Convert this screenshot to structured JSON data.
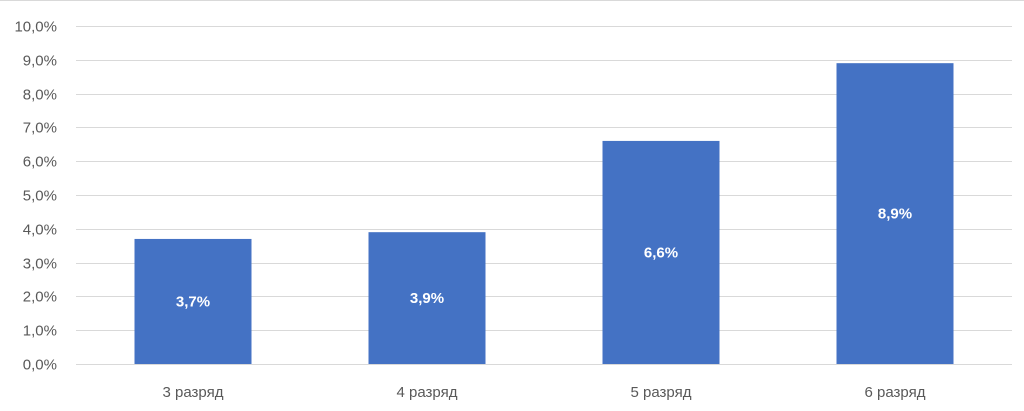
{
  "chart_data": {
    "type": "bar",
    "title": "",
    "xlabel": "",
    "ylabel": "",
    "categories": [
      "3 разряд",
      "4 разряд",
      "5 разряд",
      "6 разряд"
    ],
    "values": [
      3.7,
      3.9,
      6.6,
      8.9
    ],
    "value_labels": [
      "3,7%",
      "3,9%",
      "6,6%",
      "8,9%"
    ],
    "ylim": [
      0,
      10
    ],
    "y_ticks": [
      0,
      1,
      2,
      3,
      4,
      5,
      6,
      7,
      8,
      9,
      10
    ],
    "y_tick_labels": [
      "0,0%",
      "1,0%",
      "2,0%",
      "3,0%",
      "4,0%",
      "5,0%",
      "6,0%",
      "7,0%",
      "8,0%",
      "9,0%",
      "10,0%"
    ],
    "grid": true,
    "legend": "none",
    "colors": {
      "bar": "#4472C4",
      "grid": "#D9D9D9",
      "text": "#595959",
      "data_label": "#FFFFFF"
    }
  }
}
